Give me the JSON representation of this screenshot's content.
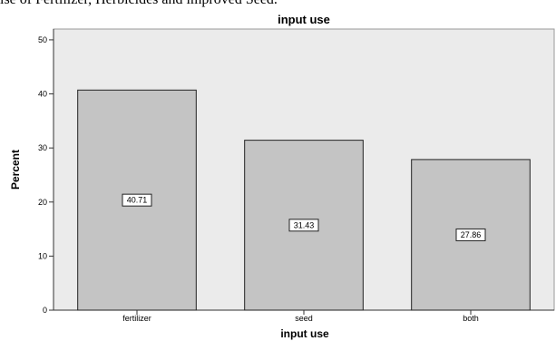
{
  "page_fragment": "ise of Fertilizer, Herbicides and improved Seed.",
  "chart_data": {
    "type": "bar",
    "title": "input use",
    "xlabel": "input use",
    "ylabel": "Percent",
    "categories": [
      "fertilizer",
      "seed",
      "both"
    ],
    "values": [
      40.71,
      31.43,
      27.86
    ],
    "value_labels": [
      "40.71",
      "31.43",
      "27.86"
    ],
    "ylim": [
      0,
      52
    ],
    "yticks": [
      0,
      10,
      20,
      30,
      40,
      50
    ],
    "grid": false,
    "legend": "none",
    "colors": {
      "bar": "#c4c4c4",
      "bar_stroke": "#222222",
      "plot_bg": "#ebebeb",
      "label_bg": "#ffffff"
    }
  }
}
